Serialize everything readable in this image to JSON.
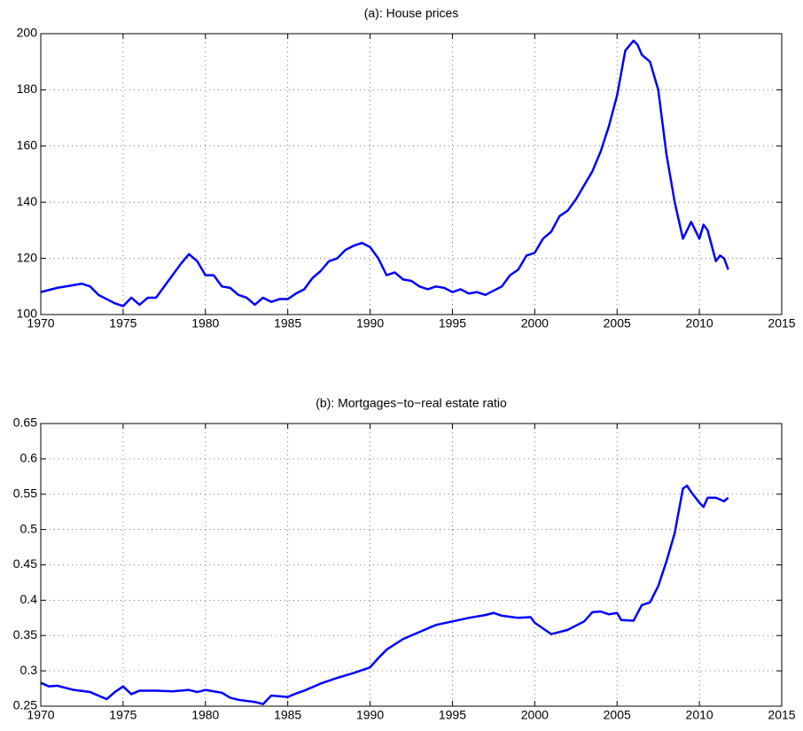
{
  "chart_data": [
    {
      "type": "line",
      "title": "(a): House prices",
      "x": [
        1970,
        1971,
        1972,
        1972.5,
        1973,
        1973.5,
        1974,
        1974.5,
        1975,
        1975.5,
        1976,
        1976.5,
        1977,
        1977.5,
        1978,
        1978.5,
        1979,
        1979.5,
        1980,
        1980.5,
        1981,
        1981.5,
        1982,
        1982.5,
        1983,
        1983.5,
        1984,
        1984.5,
        1985,
        1985.5,
        1986,
        1986.5,
        1987,
        1987.5,
        1988,
        1988.5,
        1989,
        1989.5,
        1990,
        1990.5,
        1991,
        1991.5,
        1992,
        1992.5,
        1993,
        1993.5,
        1994,
        1994.5,
        1995,
        1995.5,
        1996,
        1996.5,
        1997,
        1997.5,
        1998,
        1998.5,
        1999,
        1999.5,
        2000,
        2000.5,
        2001,
        2001.5,
        2002,
        2002.5,
        2003,
        2003.5,
        2004,
        2004.5,
        2005,
        2005.5,
        2006,
        2006.25,
        2006.5,
        2007,
        2007.5,
        2008,
        2008.5,
        2009,
        2009.5,
        2010,
        2010.25,
        2010.5,
        2011,
        2011.25,
        2011.5,
        2011.75
      ],
      "series": [
        {
          "color": "#0000ff",
          "values": [
            108,
            109.5,
            110.5,
            111,
            110,
            107,
            105.5,
            104,
            103,
            106,
            103.5,
            106,
            106,
            110,
            114,
            118,
            121.5,
            119,
            114,
            114,
            110,
            109.5,
            107,
            106,
            103.5,
            106,
            104.5,
            105.5,
            105.5,
            107.5,
            109,
            113,
            115.5,
            119,
            120,
            123,
            124.5,
            125.5,
            124,
            120,
            114,
            115,
            112.5,
            112,
            110,
            109,
            110,
            109.5,
            108,
            109,
            107.5,
            108,
            107,
            108.5,
            110,
            114,
            116,
            121,
            122,
            127,
            129.5,
            135,
            137,
            141,
            146,
            151,
            158,
            167,
            178,
            194,
            197.5,
            196,
            192.5,
            190,
            180,
            157,
            140,
            127,
            133,
            127,
            132,
            130,
            119,
            121,
            120,
            116
          ]
        }
      ],
      "xlim": [
        1970,
        2015
      ],
      "xticks": [
        1970,
        1975,
        1980,
        1985,
        1990,
        1995,
        2000,
        2005,
        2010,
        2015
      ],
      "ylim": [
        100,
        200
      ],
      "yticks": [
        100,
        120,
        140,
        160,
        180,
        200
      ],
      "grid": true
    },
    {
      "type": "line",
      "title": "(b): Mortgages−to−real estate ratio",
      "x": [
        1970,
        1970.5,
        1971,
        1972,
        1973,
        1973.5,
        1974,
        1974.5,
        1975,
        1975.5,
        1976,
        1977,
        1978,
        1979,
        1979.5,
        1980,
        1981,
        1981.5,
        1982,
        1983,
        1983.5,
        1984,
        1985,
        1985.5,
        1986,
        1987,
        1988,
        1989,
        1990,
        1990.5,
        1991,
        1992,
        1993,
        1994,
        1995,
        1996,
        1997,
        1997.5,
        1998,
        1999,
        1999.75,
        2000,
        2000.5,
        2001,
        2002,
        2003,
        2003.5,
        2004,
        2004.5,
        2005,
        2005.25,
        2006,
        2006.5,
        2007,
        2007.5,
        2008,
        2008.5,
        2009,
        2009.25,
        2009.5,
        2010,
        2010.25,
        2010.5,
        2011,
        2011.5,
        2011.75
      ],
      "series": [
        {
          "color": "#0000ff",
          "values": [
            0.283,
            0.278,
            0.279,
            0.273,
            0.27,
            0.265,
            0.26,
            0.27,
            0.278,
            0.267,
            0.272,
            0.272,
            0.271,
            0.273,
            0.27,
            0.273,
            0.269,
            0.262,
            0.259,
            0.256,
            0.253,
            0.265,
            0.263,
            0.268,
            0.272,
            0.282,
            0.29,
            0.297,
            0.305,
            0.318,
            0.33,
            0.345,
            0.355,
            0.365,
            0.37,
            0.375,
            0.379,
            0.382,
            0.378,
            0.375,
            0.376,
            0.368,
            0.36,
            0.352,
            0.358,
            0.37,
            0.383,
            0.384,
            0.38,
            0.382,
            0.372,
            0.371,
            0.393,
            0.397,
            0.42,
            0.455,
            0.495,
            0.558,
            0.562,
            0.553,
            0.538,
            0.532,
            0.545,
            0.545,
            0.54,
            0.545
          ]
        }
      ],
      "xlim": [
        1970,
        2015
      ],
      "xticks": [
        1970,
        1975,
        1980,
        1985,
        1990,
        1995,
        2000,
        2005,
        2010,
        2015
      ],
      "ylim": [
        0.25,
        0.65
      ],
      "yticks": [
        0.25,
        0.3,
        0.35,
        0.4,
        0.45,
        0.5,
        0.55,
        0.6,
        0.65
      ],
      "grid": true
    }
  ]
}
